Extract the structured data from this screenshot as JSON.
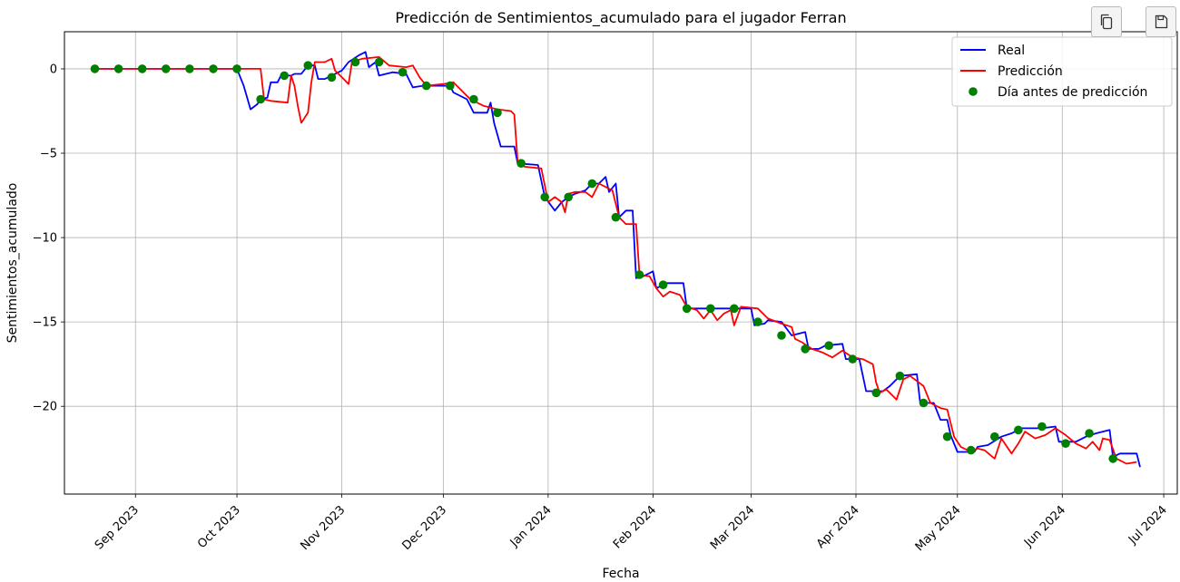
{
  "toolbar": {
    "copy_icon": "copy-icon",
    "save_icon": "save-icon"
  },
  "chart_data": {
    "type": "line",
    "title": "Predicción de Sentimientos_acumulado para el jugador Ferran",
    "xlabel": "Fecha",
    "ylabel": "Sentimientos_acumulado",
    "xlim": [
      "2023-08-11",
      "2024-07-05"
    ],
    "ylim": [
      -25.2,
      2.2
    ],
    "x_ticks": [
      {
        "date": "2023-09-01",
        "label": "Sep 2023"
      },
      {
        "date": "2023-10-01",
        "label": "Oct 2023"
      },
      {
        "date": "2023-11-01",
        "label": "Nov 2023"
      },
      {
        "date": "2023-12-01",
        "label": "Dec 2023"
      },
      {
        "date": "2024-01-01",
        "label": "Jan 2024"
      },
      {
        "date": "2024-02-01",
        "label": "Feb 2024"
      },
      {
        "date": "2024-03-01",
        "label": "Mar 2024"
      },
      {
        "date": "2024-04-01",
        "label": "Apr 2024"
      },
      {
        "date": "2024-05-01",
        "label": "May 2024"
      },
      {
        "date": "2024-06-01",
        "label": "Jun 2024"
      },
      {
        "date": "2024-07-01",
        "label": "Jul 2024"
      }
    ],
    "y_ticks": [
      {
        "value": 0,
        "label": "0"
      },
      {
        "value": -5,
        "label": "−5"
      },
      {
        "value": -10,
        "label": "−10"
      },
      {
        "value": -15,
        "label": "−15"
      },
      {
        "value": -20,
        "label": "−20"
      }
    ],
    "grid": true,
    "legend_position": "top-right",
    "series": [
      {
        "name": "Real",
        "color": "#0000ff",
        "kind": "line",
        "points": [
          [
            "2023-08-20",
            0
          ],
          [
            "2023-10-01",
            0
          ],
          [
            "2023-10-03",
            -1
          ],
          [
            "2023-10-05",
            -2.4
          ],
          [
            "2023-10-07",
            -2.1
          ],
          [
            "2023-10-08",
            -1.8
          ],
          [
            "2023-10-10",
            -1.7
          ],
          [
            "2023-10-11",
            -0.8
          ],
          [
            "2023-10-13",
            -0.8
          ],
          [
            "2023-10-14",
            -0.4
          ],
          [
            "2023-10-17",
            -0.4
          ],
          [
            "2023-10-18",
            -0.3
          ],
          [
            "2023-10-20",
            -0.3
          ],
          [
            "2023-10-22",
            0.2
          ],
          [
            "2023-10-24",
            0.2
          ],
          [
            "2023-10-25",
            -0.6
          ],
          [
            "2023-10-27",
            -0.6
          ],
          [
            "2023-10-29",
            -0.4
          ],
          [
            "2023-11-01",
            -0.1
          ],
          [
            "2023-11-03",
            0.4
          ],
          [
            "2023-11-06",
            0.8
          ],
          [
            "2023-11-08",
            1.0
          ],
          [
            "2023-11-09",
            0.1
          ],
          [
            "2023-11-11",
            0.4
          ],
          [
            "2023-11-12",
            -0.4
          ],
          [
            "2023-11-16",
            -0.2
          ],
          [
            "2023-11-20",
            -0.3
          ],
          [
            "2023-11-22",
            -1.1
          ],
          [
            "2023-11-25",
            -1.0
          ],
          [
            "2023-12-03",
            -1.0
          ],
          [
            "2023-12-04",
            -1.4
          ],
          [
            "2023-12-08",
            -1.8
          ],
          [
            "2023-12-10",
            -2.6
          ],
          [
            "2023-12-14",
            -2.6
          ],
          [
            "2023-12-15",
            -2.0
          ],
          [
            "2023-12-16",
            -3.2
          ],
          [
            "2023-12-18",
            -4.6
          ],
          [
            "2023-12-22",
            -4.6
          ],
          [
            "2023-12-23",
            -5.6
          ],
          [
            "2023-12-29",
            -5.7
          ],
          [
            "2023-12-31",
            -7.6
          ],
          [
            "2024-01-03",
            -8.4
          ],
          [
            "2024-01-05",
            -7.9
          ],
          [
            "2024-01-07",
            -7.6
          ],
          [
            "2024-01-09",
            -7.4
          ],
          [
            "2024-01-12",
            -7.2
          ],
          [
            "2024-01-14",
            -6.8
          ],
          [
            "2024-01-16",
            -6.8
          ],
          [
            "2024-01-18",
            -6.4
          ],
          [
            "2024-01-19",
            -7.3
          ],
          [
            "2024-01-21",
            -6.8
          ],
          [
            "2024-01-22",
            -8.8
          ],
          [
            "2024-01-24",
            -8.4
          ],
          [
            "2024-01-26",
            -8.4
          ],
          [
            "2024-01-27",
            -12.4
          ],
          [
            "2024-01-29",
            -12.3
          ],
          [
            "2024-02-01",
            -12.0
          ],
          [
            "2024-02-02",
            -13.0
          ],
          [
            "2024-02-05",
            -12.7
          ],
          [
            "2024-02-10",
            -12.7
          ],
          [
            "2024-02-11",
            -14.2
          ],
          [
            "2024-02-20",
            -14.2
          ],
          [
            "2024-02-27",
            -14.2
          ],
          [
            "2024-03-01",
            -14.2
          ],
          [
            "2024-03-02",
            -15.2
          ],
          [
            "2024-03-05",
            -15.1
          ],
          [
            "2024-03-06",
            -14.9
          ],
          [
            "2024-03-10",
            -15.0
          ],
          [
            "2024-03-13",
            -15.8
          ],
          [
            "2024-03-17",
            -15.6
          ],
          [
            "2024-03-18",
            -16.6
          ],
          [
            "2024-03-21",
            -16.6
          ],
          [
            "2024-03-23",
            -16.4
          ],
          [
            "2024-03-28",
            -16.3
          ],
          [
            "2024-03-29",
            -17.2
          ],
          [
            "2024-04-02",
            -17.2
          ],
          [
            "2024-04-04",
            -19.1
          ],
          [
            "2024-04-09",
            -19.1
          ],
          [
            "2024-04-11",
            -18.8
          ],
          [
            "2024-04-14",
            -18.2
          ],
          [
            "2024-04-19",
            -18.1
          ],
          [
            "2024-04-20",
            -19.8
          ],
          [
            "2024-04-24",
            -19.8
          ],
          [
            "2024-04-26",
            -20.8
          ],
          [
            "2024-04-28",
            -20.8
          ],
          [
            "2024-04-29",
            -21.7
          ],
          [
            "2024-05-01",
            -22.7
          ],
          [
            "2024-05-06",
            -22.7
          ],
          [
            "2024-05-07",
            -22.4
          ],
          [
            "2024-05-10",
            -22.3
          ],
          [
            "2024-05-14",
            -21.8
          ],
          [
            "2024-05-17",
            -21.6
          ],
          [
            "2024-05-20",
            -21.3
          ],
          [
            "2024-05-26",
            -21.3
          ],
          [
            "2024-05-30",
            -21.2
          ],
          [
            "2024-05-31",
            -22.1
          ],
          [
            "2024-06-05",
            -22.1
          ],
          [
            "2024-06-08",
            -21.8
          ],
          [
            "2024-06-11",
            -21.6
          ],
          [
            "2024-06-15",
            -21.4
          ],
          [
            "2024-06-16",
            -23.0
          ],
          [
            "2024-06-18",
            -22.8
          ],
          [
            "2024-06-23",
            -22.8
          ],
          [
            "2024-06-24",
            -23.6
          ]
        ]
      },
      {
        "name": "Predicción",
        "color": "#ff0000",
        "kind": "line",
        "points": [
          [
            "2023-08-20",
            0
          ],
          [
            "2023-10-08",
            0
          ],
          [
            "2023-10-09",
            -1.8
          ],
          [
            "2023-10-11",
            -1.9
          ],
          [
            "2023-10-16",
            -2.0
          ],
          [
            "2023-10-17",
            -0.4
          ],
          [
            "2023-10-18",
            -1.0
          ],
          [
            "2023-10-19",
            -2.2
          ],
          [
            "2023-10-20",
            -3.2
          ],
          [
            "2023-10-22",
            -2.6
          ],
          [
            "2023-10-23",
            -0.8
          ],
          [
            "2023-10-24",
            0.4
          ],
          [
            "2023-10-27",
            0.4
          ],
          [
            "2023-10-29",
            0.6
          ],
          [
            "2023-10-30",
            -0.1
          ],
          [
            "2023-11-01",
            -0.5
          ],
          [
            "2023-11-03",
            -0.9
          ],
          [
            "2023-11-04",
            0.4
          ],
          [
            "2023-11-07",
            0.6
          ],
          [
            "2023-11-12",
            0.7
          ],
          [
            "2023-11-15",
            0.2
          ],
          [
            "2023-11-20",
            0.1
          ],
          [
            "2023-11-22",
            0.2
          ],
          [
            "2023-11-24",
            -0.5
          ],
          [
            "2023-11-26",
            -1.0
          ],
          [
            "2023-12-01",
            -0.9
          ],
          [
            "2023-12-04",
            -0.8
          ],
          [
            "2023-12-05",
            -1.0
          ],
          [
            "2023-12-09",
            -1.8
          ],
          [
            "2023-12-13",
            -2.2
          ],
          [
            "2023-12-17",
            -2.4
          ],
          [
            "2023-12-21",
            -2.5
          ],
          [
            "2023-12-22",
            -2.7
          ],
          [
            "2023-12-23",
            -5.5
          ],
          [
            "2023-12-25",
            -5.8
          ],
          [
            "2023-12-30",
            -5.9
          ],
          [
            "2024-01-01",
            -7.9
          ],
          [
            "2024-01-03",
            -7.6
          ],
          [
            "2024-01-05",
            -7.9
          ],
          [
            "2024-01-06",
            -8.5
          ],
          [
            "2024-01-07",
            -7.4
          ],
          [
            "2024-01-09",
            -7.3
          ],
          [
            "2024-01-12",
            -7.3
          ],
          [
            "2024-01-14",
            -7.6
          ],
          [
            "2024-01-16",
            -6.8
          ],
          [
            "2024-01-18",
            -7.0
          ],
          [
            "2024-01-20",
            -7.2
          ],
          [
            "2024-01-22",
            -8.8
          ],
          [
            "2024-01-24",
            -9.2
          ],
          [
            "2024-01-27",
            -9.2
          ],
          [
            "2024-01-28",
            -12.2
          ],
          [
            "2024-01-31",
            -12.3
          ],
          [
            "2024-02-02",
            -13.0
          ],
          [
            "2024-02-04",
            -13.5
          ],
          [
            "2024-02-06",
            -13.2
          ],
          [
            "2024-02-09",
            -13.4
          ],
          [
            "2024-02-11",
            -14.1
          ],
          [
            "2024-02-14",
            -14.3
          ],
          [
            "2024-02-16",
            -14.8
          ],
          [
            "2024-02-18",
            -14.3
          ],
          [
            "2024-02-20",
            -14.9
          ],
          [
            "2024-02-22",
            -14.5
          ],
          [
            "2024-02-24",
            -14.3
          ],
          [
            "2024-02-25",
            -15.2
          ],
          [
            "2024-02-27",
            -14.1
          ],
          [
            "2024-03-03",
            -14.2
          ],
          [
            "2024-03-06",
            -14.8
          ],
          [
            "2024-03-10",
            -15.1
          ],
          [
            "2024-03-13",
            -15.3
          ],
          [
            "2024-03-14",
            -16.0
          ],
          [
            "2024-03-16",
            -16.2
          ],
          [
            "2024-03-19",
            -16.6
          ],
          [
            "2024-03-22",
            -16.8
          ],
          [
            "2024-03-25",
            -17.1
          ],
          [
            "2024-03-28",
            -16.7
          ],
          [
            "2024-03-31",
            -17.1
          ],
          [
            "2024-04-03",
            -17.2
          ],
          [
            "2024-04-06",
            -17.5
          ],
          [
            "2024-04-07",
            -18.6
          ],
          [
            "2024-04-08",
            -19.2
          ],
          [
            "2024-04-10",
            -19.0
          ],
          [
            "2024-04-13",
            -19.6
          ],
          [
            "2024-04-15",
            -18.4
          ],
          [
            "2024-04-17",
            -18.2
          ],
          [
            "2024-04-21",
            -18.8
          ],
          [
            "2024-04-23",
            -19.8
          ],
          [
            "2024-04-26",
            -20.1
          ],
          [
            "2024-04-28",
            -20.2
          ],
          [
            "2024-04-30",
            -21.8
          ],
          [
            "2024-05-02",
            -22.4
          ],
          [
            "2024-05-05",
            -22.7
          ],
          [
            "2024-05-07",
            -22.5
          ],
          [
            "2024-05-09",
            -22.6
          ],
          [
            "2024-05-12",
            -23.1
          ],
          [
            "2024-05-14",
            -21.9
          ],
          [
            "2024-05-17",
            -22.8
          ],
          [
            "2024-05-19",
            -22.2
          ],
          [
            "2024-05-21",
            -21.5
          ],
          [
            "2024-05-24",
            -21.9
          ],
          [
            "2024-05-27",
            -21.7
          ],
          [
            "2024-05-30",
            -21.3
          ],
          [
            "2024-06-02",
            -21.7
          ],
          [
            "2024-06-05",
            -22.2
          ],
          [
            "2024-06-08",
            -22.5
          ],
          [
            "2024-06-10",
            -22.1
          ],
          [
            "2024-06-12",
            -22.6
          ],
          [
            "2024-06-13",
            -21.9
          ],
          [
            "2024-06-15",
            -22.0
          ],
          [
            "2024-06-17",
            -23.1
          ],
          [
            "2024-06-20",
            -23.4
          ],
          [
            "2024-06-23",
            -23.3
          ]
        ]
      },
      {
        "name": "Día antes de predicción",
        "color": "#008000",
        "kind": "scatter",
        "points": [
          [
            "2023-08-20",
            0
          ],
          [
            "2023-08-27",
            0
          ],
          [
            "2023-09-03",
            0
          ],
          [
            "2023-09-10",
            0
          ],
          [
            "2023-09-17",
            0
          ],
          [
            "2023-09-24",
            0
          ],
          [
            "2023-10-01",
            0
          ],
          [
            "2023-10-08",
            -1.8
          ],
          [
            "2023-10-15",
            -0.4
          ],
          [
            "2023-10-22",
            0.2
          ],
          [
            "2023-10-29",
            -0.5
          ],
          [
            "2023-11-05",
            0.4
          ],
          [
            "2023-11-12",
            0.4
          ],
          [
            "2023-11-19",
            -0.2
          ],
          [
            "2023-11-26",
            -1.0
          ],
          [
            "2023-12-03",
            -1.0
          ],
          [
            "2023-12-10",
            -1.8
          ],
          [
            "2023-12-17",
            -2.6
          ],
          [
            "2023-12-24",
            -5.6
          ],
          [
            "2023-12-31",
            -7.6
          ],
          [
            "2024-01-07",
            -7.6
          ],
          [
            "2024-01-14",
            -6.8
          ],
          [
            "2024-01-21",
            -8.8
          ],
          [
            "2024-01-28",
            -12.2
          ],
          [
            "2024-02-04",
            -12.8
          ],
          [
            "2024-02-11",
            -14.2
          ],
          [
            "2024-02-18",
            -14.2
          ],
          [
            "2024-02-25",
            -14.2
          ],
          [
            "2024-03-03",
            -15.0
          ],
          [
            "2024-03-10",
            -15.8
          ],
          [
            "2024-03-17",
            -16.6
          ],
          [
            "2024-03-24",
            -16.4
          ],
          [
            "2024-03-31",
            -17.2
          ],
          [
            "2024-04-07",
            -19.2
          ],
          [
            "2024-04-14",
            -18.2
          ],
          [
            "2024-04-21",
            -19.8
          ],
          [
            "2024-04-28",
            -21.8
          ],
          [
            "2024-05-05",
            -22.6
          ],
          [
            "2024-05-12",
            -21.8
          ],
          [
            "2024-05-19",
            -21.4
          ],
          [
            "2024-05-26",
            -21.2
          ],
          [
            "2024-06-02",
            -22.2
          ],
          [
            "2024-06-09",
            -21.6
          ],
          [
            "2024-06-16",
            -23.1
          ]
        ]
      }
    ]
  }
}
